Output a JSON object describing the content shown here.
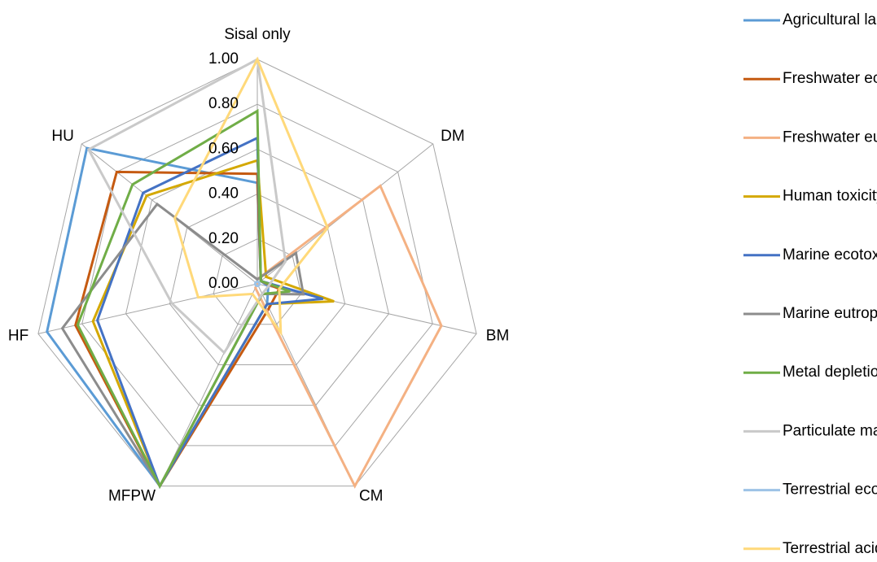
{
  "chart_data": {
    "type": "radar",
    "categories": [
      "Sisal only",
      "DM",
      "BM",
      "CM",
      "MFPW",
      "HF",
      "HU"
    ],
    "rlim": [
      0,
      1
    ],
    "rticks": [
      {
        "value": 0,
        "label": "0.00"
      },
      {
        "value": 0.2,
        "label": "0.20"
      },
      {
        "value": 0.4,
        "label": "0.40"
      },
      {
        "value": 0.6,
        "label": "0.60"
      },
      {
        "value": 0.8,
        "label": "0.80"
      },
      {
        "value": 1,
        "label": "1.00"
      }
    ],
    "grid": true,
    "legend": "right",
    "series": [
      {
        "name": "Agricultural land occupation",
        "color": "#5b9bd5",
        "values": [
          0.45,
          0.02,
          0.05,
          0.1,
          1.0,
          0.96,
          0.97
        ]
      },
      {
        "name": "Freshwater ecotoxicity",
        "color": "#c55a11",
        "values": [
          0.49,
          0.02,
          0.1,
          0.12,
          1.0,
          0.83,
          0.8
        ]
      },
      {
        "name": "Freshwater eutrophication",
        "color": "#f4b183",
        "values": [
          0.02,
          0.7,
          0.84,
          1.0,
          0.02,
          0.0,
          0.0
        ]
      },
      {
        "name": "Human toxicity",
        "color": "#d4a800",
        "values": [
          0.55,
          0.05,
          0.35,
          0.1,
          1.0,
          0.75,
          0.63
        ]
      },
      {
        "name": "Marine ecotoxicity",
        "color": "#4472c4",
        "values": [
          0.65,
          0.02,
          0.3,
          0.1,
          1.0,
          0.73,
          0.65
        ]
      },
      {
        "name": "Marine eutrophication",
        "color": "#8c8c8c",
        "values": [
          0.02,
          0.22,
          0.21,
          0.05,
          1.0,
          0.89,
          0.57
        ]
      },
      {
        "name": "Metal depletion",
        "color": "#70ad47",
        "values": [
          0.77,
          0.02,
          0.15,
          0.05,
          1.0,
          0.82,
          0.71
        ]
      },
      {
        "name": "Particulate matter formation",
        "color": "#c9c9c9",
        "values": [
          1.0,
          0.16,
          0.05,
          0.05,
          0.34,
          0.39,
          0.96
        ]
      },
      {
        "name": "Terrestrial ecotoxicity",
        "color": "#9dc3e6",
        "values": [
          0.01,
          0.01,
          0.01,
          0.01,
          0.01,
          0.01,
          0.01
        ]
      },
      {
        "name": "Terrestrial acidification",
        "color": "#ffd97a",
        "values": [
          1.0,
          0.4,
          0.1,
          0.24,
          0.05,
          0.27,
          0.47
        ]
      }
    ]
  }
}
